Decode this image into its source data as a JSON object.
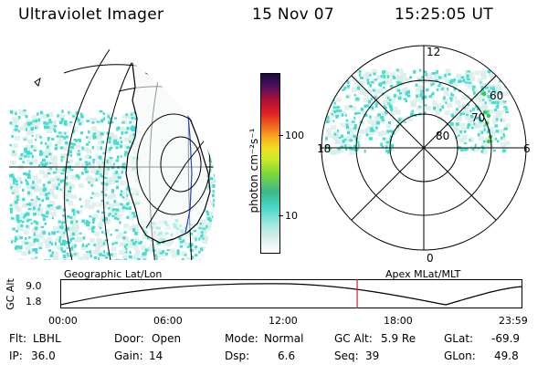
{
  "header": {
    "title": "Ultraviolet Imager",
    "date": "15 Nov 07",
    "time": "15:25:05 UT"
  },
  "colorbar": {
    "unit_label": "photon cm⁻²s⁻¹",
    "ticks": [
      "100",
      "10"
    ]
  },
  "polar": {
    "mlt_labels": [
      "12",
      "18",
      "6",
      "0"
    ],
    "lat_labels": [
      "60",
      "70",
      "80"
    ]
  },
  "timeline": {
    "left_caption": "Geographic Lat/Lon",
    "right_caption": "Apex MLat/MLT",
    "axis_label": "GC Alt",
    "y_ticks": [
      "9.0",
      "1.8"
    ],
    "x_ticks": [
      "00:00",
      "06:00",
      "12:00",
      "18:00",
      "23:59"
    ],
    "current_time_hours": 15.418
  },
  "status": {
    "filter_label": "Flt:",
    "filter_value": "LBHL",
    "ip_label": "IP:",
    "ip_value": "36.0",
    "door_label": "Door:",
    "door_value": "Open",
    "gain_label": "Gain:",
    "gain_value": "14",
    "mode_label": "Mode:",
    "mode_value": "Normal",
    "dsp_label": "Dsp:",
    "dsp_value": "6.6",
    "gcalt_label": "GC Alt:",
    "gcalt_value": "5.9 Re",
    "seq_label": "Seq:",
    "seq_value": "39",
    "glat_label": "GLat:",
    "glat_value": "-69.9",
    "glon_label": "GLon:",
    "glon_value": "49.8"
  },
  "colors": {
    "speckle": "#44ddd0",
    "haze": "#d8ece8",
    "timeline_marker": "#cc2222"
  }
}
